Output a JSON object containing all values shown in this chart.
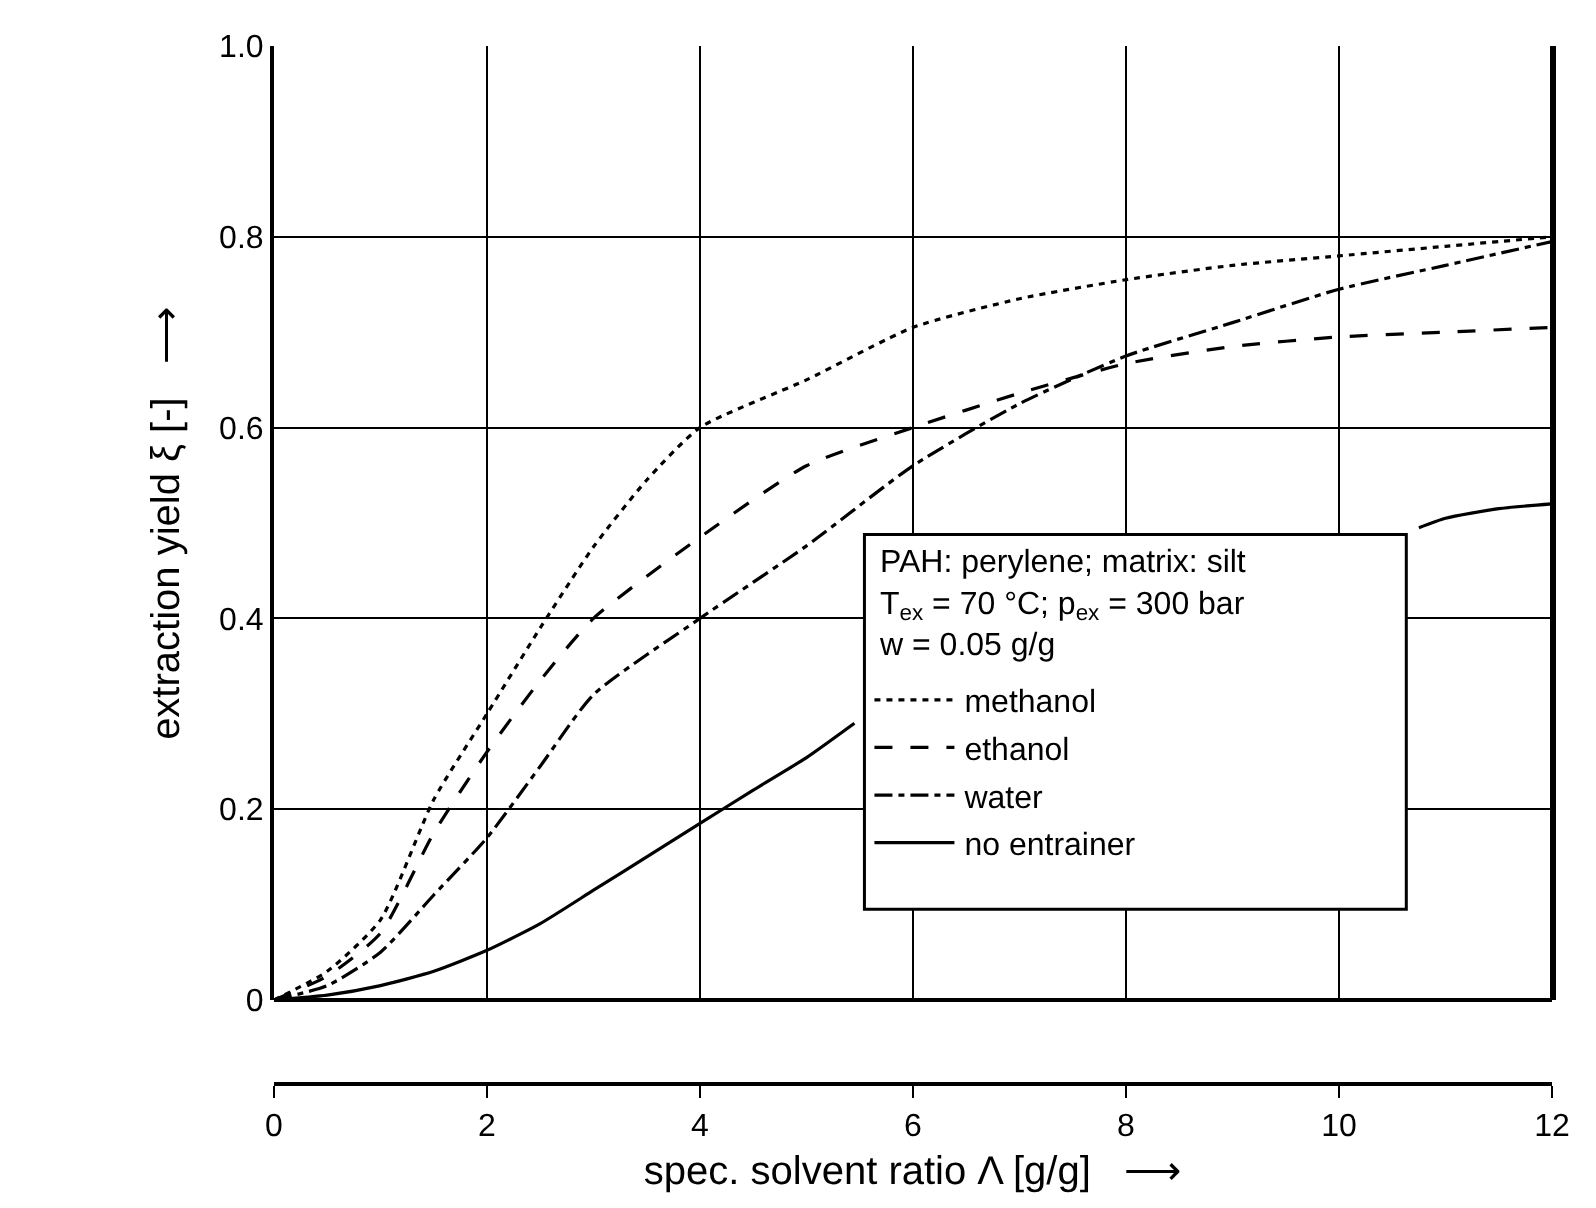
{
  "chart_data": {
    "type": "line",
    "xlabel": "spec. solvent ratio Λ [g/g]   ⟶",
    "ylabel": "extraction yield ξ [-]   ⟶",
    "legend_title": "PAH: perylene; matrix: silt\nT$_{ex}$ = 70 °C; p$_{ex}$ = 300 bar\nw = 0.05 g/g",
    "legend": "right",
    "grid": true,
    "xlim": [
      0,
      12
    ],
    "xticks": [
      0,
      2,
      4,
      6,
      8,
      10,
      12
    ],
    "ylim": [
      0,
      1
    ],
    "yticks": [
      0,
      0.2,
      0.4,
      0.6,
      0.8,
      {
        "value": 1,
        "label": "1.0"
      }
    ],
    "series": [
      {
        "name": "methanol",
        "color": "#000000",
        "line_style": "dotted",
        "x": [
          0,
          0.5,
          1,
          1.5,
          2,
          2.5,
          3,
          3.5,
          4,
          5,
          6,
          7,
          8,
          9,
          10,
          11,
          12
        ],
        "values": [
          0,
          0.03,
          0.084,
          0.21,
          0.3,
          0.39,
          0.475,
          0.545,
          0.6,
          0.65,
          0.705,
          0.735,
          0.755,
          0.77,
          0.78,
          0.79,
          0.8
        ]
      },
      {
        "name": "ethanol",
        "color": "#000000",
        "line_style": "dashed",
        "x": [
          0,
          0.5,
          1,
          1.5,
          2,
          2.5,
          3,
          4,
          5,
          6,
          7,
          8,
          9,
          10,
          11,
          12
        ],
        "values": [
          0,
          0.025,
          0.07,
          0.175,
          0.26,
          0.335,
          0.4,
          0.485,
          0.56,
          0.6,
          0.636,
          0.667,
          0.685,
          0.695,
          0.7,
          0.705
        ]
      },
      {
        "name": "water",
        "color": "#000000",
        "line_style": "dashdot",
        "x": [
          0,
          0.5,
          1,
          1.5,
          2,
          2.5,
          3,
          4,
          5,
          6,
          7,
          8,
          9,
          10,
          11,
          12
        ],
        "values": [
          0,
          0.015,
          0.05,
          0.11,
          0.17,
          0.245,
          0.32,
          0.4,
          0.476,
          0.56,
          0.625,
          0.675,
          0.71,
          0.745,
          0.77,
          0.795
        ]
      },
      {
        "name": "no entrainer",
        "color": "#000000",
        "line_style": "solid",
        "x": [
          0,
          0.5,
          1,
          1.5,
          2,
          2.5,
          3,
          3.5,
          4,
          4.5,
          5,
          5.45,
          8,
          10.75,
          11,
          11.5,
          12
        ],
        "values": [
          0,
          0.005,
          0.015,
          0.03,
          0.052,
          0.08,
          0.115,
          0.15,
          0.185,
          0.22,
          0.254,
          0.29,
          null,
          0.495,
          0.505,
          0.515,
          0.52
        ]
      }
    ]
  }
}
